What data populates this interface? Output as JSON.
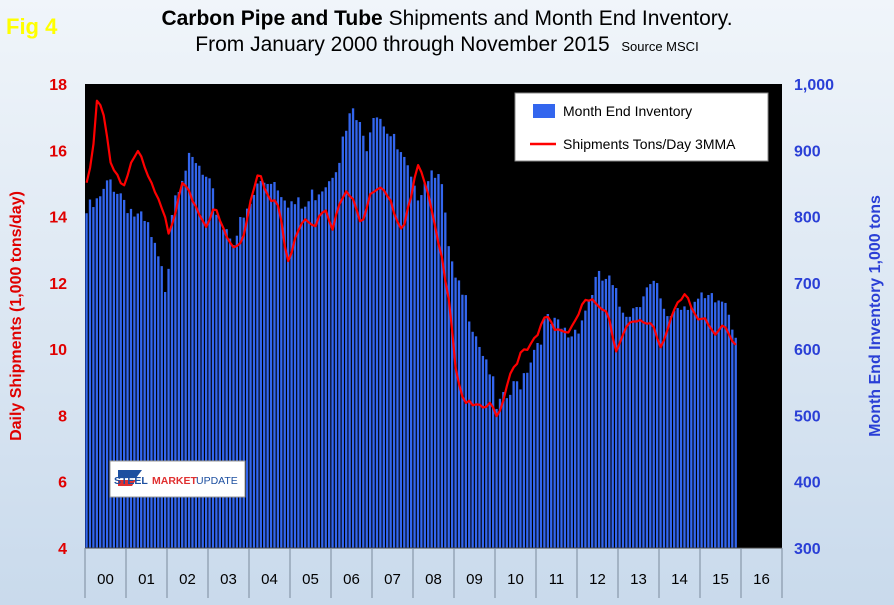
{
  "figure_label": "Fig 4",
  "title": {
    "bold": "Carbon Pipe and Tube",
    "rest": " Shipments and Month End Inventory.",
    "line2": "From January 2000 through November 2015",
    "source": "Source MSCI"
  },
  "logo": {
    "steel": "STEEL",
    "market": "MARKET",
    "update": "UPDATE"
  },
  "colors": {
    "bars": "#3366ee",
    "line": "#ff0000",
    "plot_bg": "#000000",
    "left_axis": "#e00000",
    "right_axis": "#2a3fd6",
    "fig_label": "#ffff00"
  },
  "chart_data": {
    "type": "bar+line",
    "title": "Carbon Pipe and Tube Shipments and Month End Inventory. From January 2000 through November 2015",
    "left_axis": {
      "label": "Daily Shipments (1,000 tons/day)",
      "range": [
        4,
        18
      ],
      "ticks": [
        "4",
        "6",
        "8",
        "10",
        "12",
        "14",
        "16",
        "18"
      ]
    },
    "right_axis": {
      "label": "Month End Inventory 1,000 tons",
      "range": [
        300,
        1000
      ],
      "ticks": [
        "300",
        "400",
        "500",
        "600",
        "700",
        "800",
        "900",
        "1,000"
      ]
    },
    "x_labels": [
      "00",
      "01",
      "02",
      "03",
      "04",
      "05",
      "06",
      "07",
      "08",
      "09",
      "10",
      "11",
      "12",
      "13",
      "14",
      "15",
      "16"
    ],
    "legend": [
      "Month End  Inventory",
      "Shipments Tons/Day 3MMA"
    ],
    "series": [
      {
        "name": "Month End  Inventory",
        "axis": "right",
        "type": "bar",
        "anchors_year_value": [
          [
            2000.0,
            805
          ],
          [
            2000.3,
            820
          ],
          [
            2000.6,
            855
          ],
          [
            2000.9,
            830
          ],
          [
            2001.2,
            800
          ],
          [
            2001.5,
            780
          ],
          [
            2001.8,
            720
          ],
          [
            2001.95,
            690
          ],
          [
            2002.1,
            830
          ],
          [
            2002.4,
            880
          ],
          [
            2002.7,
            875
          ],
          [
            2003.0,
            840
          ],
          [
            2003.3,
            790
          ],
          [
            2003.6,
            770
          ],
          [
            2003.9,
            800
          ],
          [
            2004.2,
            850
          ],
          [
            2004.5,
            860
          ],
          [
            2004.8,
            840
          ],
          [
            2005.0,
            820
          ],
          [
            2005.3,
            810
          ],
          [
            2005.6,
            840
          ],
          [
            2005.9,
            860
          ],
          [
            2006.2,
            900
          ],
          [
            2006.5,
            960
          ],
          [
            2006.8,
            905
          ],
          [
            2007.0,
            965
          ],
          [
            2007.2,
            955
          ],
          [
            2007.5,
            910
          ],
          [
            2007.8,
            870
          ],
          [
            2008.0,
            830
          ],
          [
            2008.3,
            865
          ],
          [
            2008.6,
            880
          ],
          [
            2008.8,
            760
          ],
          [
            2009.0,
            695
          ],
          [
            2009.3,
            665
          ],
          [
            2009.6,
            610
          ],
          [
            2009.85,
            570
          ],
          [
            2010.0,
            505
          ],
          [
            2010.3,
            528
          ],
          [
            2010.6,
            555
          ],
          [
            2010.9,
            600
          ],
          [
            2011.2,
            640
          ],
          [
            2011.5,
            630
          ],
          [
            2011.8,
            620
          ],
          [
            2012.1,
            650
          ],
          [
            2012.4,
            700
          ],
          [
            2012.7,
            705
          ],
          [
            2013.0,
            665
          ],
          [
            2013.3,
            660
          ],
          [
            2013.6,
            690
          ],
          [
            2013.9,
            690
          ],
          [
            2014.1,
            645
          ],
          [
            2014.4,
            665
          ],
          [
            2014.7,
            675
          ],
          [
            2015.0,
            668
          ],
          [
            2015.3,
            670
          ],
          [
            2015.6,
            675
          ],
          [
            2015.75,
            645
          ],
          [
            2015.85,
            620
          ]
        ]
      },
      {
        "name": "Shipments Tons/Day 3MMA",
        "axis": "left",
        "type": "line",
        "anchors_year_value": [
          [
            2000.0,
            15.0
          ],
          [
            2000.15,
            16.0
          ],
          [
            2000.25,
            17.5
          ],
          [
            2000.4,
            17.3
          ],
          [
            2000.6,
            15.5
          ],
          [
            2000.9,
            14.8
          ],
          [
            2001.1,
            15.6
          ],
          [
            2001.3,
            16.0
          ],
          [
            2001.5,
            15.3
          ],
          [
            2001.8,
            14.5
          ],
          [
            2002.0,
            13.4
          ],
          [
            2002.2,
            14.2
          ],
          [
            2002.3,
            15.0
          ],
          [
            2002.6,
            14.5
          ],
          [
            2002.9,
            13.7
          ],
          [
            2003.1,
            14.3
          ],
          [
            2003.4,
            13.4
          ],
          [
            2003.6,
            13.0
          ],
          [
            2003.8,
            13.3
          ],
          [
            2004.0,
            14.5
          ],
          [
            2004.2,
            15.5
          ],
          [
            2004.45,
            14.5
          ],
          [
            2004.7,
            14.3
          ],
          [
            2004.9,
            12.5
          ],
          [
            2005.1,
            13.5
          ],
          [
            2005.3,
            14.0
          ],
          [
            2005.6,
            13.8
          ],
          [
            2005.8,
            14.2
          ],
          [
            2006.0,
            13.6
          ],
          [
            2006.3,
            14.9
          ],
          [
            2006.5,
            14.6
          ],
          [
            2006.7,
            13.8
          ],
          [
            2006.95,
            14.7
          ],
          [
            2007.2,
            14.8
          ],
          [
            2007.5,
            14.2
          ],
          [
            2007.7,
            13.6
          ],
          [
            2007.9,
            14.6
          ],
          [
            2008.05,
            15.6
          ],
          [
            2008.3,
            14.8
          ],
          [
            2008.5,
            13.6
          ],
          [
            2008.7,
            12.5
          ],
          [
            2008.85,
            11.5
          ],
          [
            2009.0,
            9.5
          ],
          [
            2009.15,
            8.6
          ],
          [
            2009.35,
            8.3
          ],
          [
            2009.6,
            8.2
          ],
          [
            2009.85,
            8.3
          ],
          [
            2010.05,
            8.0
          ],
          [
            2010.3,
            9.2
          ],
          [
            2010.55,
            9.8
          ],
          [
            2010.8,
            10.0
          ],
          [
            2011.0,
            10.4
          ],
          [
            2011.2,
            11.1
          ],
          [
            2011.4,
            10.7
          ],
          [
            2011.7,
            10.5
          ],
          [
            2011.9,
            10.7
          ],
          [
            2012.1,
            11.4
          ],
          [
            2012.4,
            11.4
          ],
          [
            2012.7,
            11.2
          ],
          [
            2012.9,
            10.0
          ],
          [
            2013.2,
            10.7
          ],
          [
            2013.5,
            10.8
          ],
          [
            2013.8,
            10.8
          ],
          [
            2014.0,
            10.1
          ],
          [
            2014.3,
            11.1
          ],
          [
            2014.6,
            11.6
          ],
          [
            2014.9,
            10.9
          ],
          [
            2015.1,
            11.0
          ],
          [
            2015.3,
            10.5
          ],
          [
            2015.5,
            10.7
          ],
          [
            2015.85,
            10.0
          ]
        ]
      }
    ]
  }
}
